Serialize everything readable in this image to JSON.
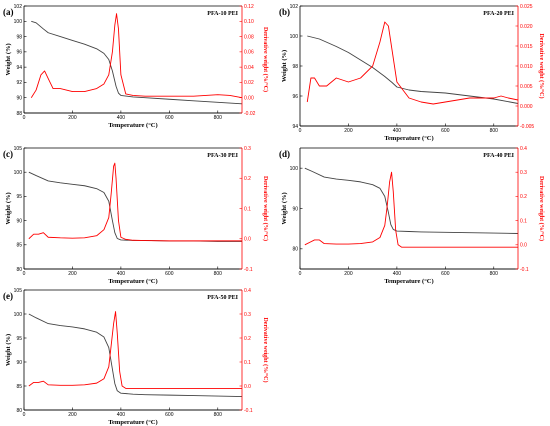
{
  "chart_data": [
    {
      "type": "line",
      "panel": "(a)",
      "title": "PFA-10 PEI",
      "xlabel": "Temperature (°C)",
      "ylabel": "Weight (%)",
      "y2label": "Derivative weight (%/°C)",
      "xlim": [
        0,
        900
      ],
      "ylim": [
        88,
        102
      ],
      "y2lim": [
        -0.02,
        0.12
      ],
      "x_ticks": [
        0,
        200,
        400,
        600,
        800
      ],
      "y_ticks": [
        88,
        90,
        92,
        94,
        96,
        98,
        100,
        102
      ],
      "y2_ticks": [
        -0.02,
        0,
        0.02,
        0.04,
        0.06,
        0.08,
        0.1,
        0.12
      ],
      "x_tick_labels": [
        "0",
        "200",
        "400",
        "600",
        "800"
      ],
      "y_tick_labels": [
        "88",
        "90",
        "92",
        "94",
        "96",
        "98",
        "100",
        "102"
      ],
      "y2_tick_labels": [
        "-0.02",
        "0.00",
        "0.02",
        "0.04",
        "0.06",
        "0.08",
        "0.10",
        "0.12"
      ],
      "grid": false,
      "series": [
        {
          "axis": "left",
          "color": "#444444",
          "x": [
            30,
            50,
            80,
            100,
            150,
            200,
            250,
            300,
            330,
            350,
            365,
            380,
            390,
            400,
            450,
            500,
            600,
            700,
            800,
            900
          ],
          "y": [
            100.0,
            99.8,
            99.0,
            98.5,
            98.0,
            97.5,
            97.0,
            96.4,
            95.8,
            95.0,
            93.5,
            91.5,
            90.6,
            90.3,
            90.1,
            90.0,
            89.8,
            89.6,
            89.4,
            89.2
          ]
        },
        {
          "axis": "right",
          "color": "#ff0000",
          "x": [
            30,
            50,
            70,
            85,
            100,
            120,
            150,
            200,
            250,
            300,
            330,
            350,
            365,
            375,
            382,
            390,
            400,
            420,
            450,
            500,
            600,
            700,
            800,
            850,
            900
          ],
          "y": [
            0.0,
            0.01,
            0.03,
            0.035,
            0.025,
            0.012,
            0.012,
            0.008,
            0.008,
            0.012,
            0.018,
            0.03,
            0.06,
            0.095,
            0.11,
            0.09,
            0.03,
            0.005,
            0.003,
            0.002,
            0.002,
            0.002,
            0.004,
            0.003,
            0.0
          ]
        }
      ]
    },
    {
      "type": "line",
      "panel": "(b)",
      "title": "PFA-20 PEI",
      "xlabel": "Temperature (°C)",
      "ylabel": "Weight (%)",
      "y2label": "Derivative weight (%/°C)",
      "xlim": [
        0,
        900
      ],
      "ylim": [
        94,
        102
      ],
      "y2lim": [
        -0.005,
        0.025
      ],
      "x_ticks": [
        0,
        200,
        400,
        600,
        800
      ],
      "y_ticks": [
        94,
        96,
        98,
        100,
        102
      ],
      "y2_ticks": [
        -0.005,
        0,
        0.005,
        0.01,
        0.015,
        0.02,
        0.025
      ],
      "x_tick_labels": [
        "0",
        "200",
        "400",
        "600",
        "800"
      ],
      "y_tick_labels": [
        "94",
        "96",
        "98",
        "100",
        "102"
      ],
      "y2_tick_labels": [
        "-0.005",
        "0.000",
        "0.005",
        "0.010",
        "0.015",
        "0.020",
        "0.025"
      ],
      "grid": false,
      "series": [
        {
          "axis": "left",
          "color": "#444444",
          "x": [
            30,
            80,
            150,
            200,
            250,
            300,
            350,
            380,
            400,
            450,
            500,
            600,
            700,
            800,
            900
          ],
          "y": [
            100.0,
            99.8,
            99.3,
            98.9,
            98.4,
            97.9,
            97.3,
            96.9,
            96.6,
            96.4,
            96.3,
            96.2,
            96.0,
            95.8,
            95.5
          ]
        },
        {
          "axis": "right",
          "color": "#ff0000",
          "x": [
            30,
            45,
            60,
            80,
            110,
            150,
            200,
            250,
            300,
            330,
            350,
            365,
            380,
            400,
            450,
            500,
            550,
            600,
            700,
            800,
            830,
            860,
            900
          ],
          "y": [
            0.001,
            0.007,
            0.007,
            0.005,
            0.005,
            0.007,
            0.006,
            0.007,
            0.01,
            0.016,
            0.021,
            0.02,
            0.014,
            0.006,
            0.002,
            0.001,
            0.0005,
            0.001,
            0.002,
            0.002,
            0.0025,
            0.002,
            0.0015
          ]
        }
      ]
    },
    {
      "type": "line",
      "panel": "(c)",
      "title": "PFA-30 PEI",
      "xlabel": "Temperature (°C)",
      "ylabel": "Weight (%)",
      "y2label": "Derivative weight (%/°C)",
      "xlim": [
        0,
        900
      ],
      "ylim": [
        80,
        105
      ],
      "y2lim": [
        -0.1,
        0.3
      ],
      "x_ticks": [
        0,
        200,
        400,
        600,
        800
      ],
      "y_ticks": [
        80,
        85,
        90,
        95,
        100,
        105
      ],
      "y2_ticks": [
        -0.1,
        0,
        0.1,
        0.2,
        0.3
      ],
      "x_tick_labels": [
        "0",
        "200",
        "400",
        "600",
        "800"
      ],
      "y_tick_labels": [
        "80",
        "85",
        "90",
        "95",
        "100",
        "105"
      ],
      "y2_tick_labels": [
        "-0.1",
        "0.0",
        "0.1",
        "0.2",
        "0.3"
      ],
      "grid": false,
      "series": [
        {
          "axis": "left",
          "color": "#444444",
          "x": [
            20,
            50,
            100,
            150,
            200,
            250,
            300,
            330,
            350,
            365,
            375,
            385,
            400,
            450,
            500,
            600,
            700,
            800,
            900
          ],
          "y": [
            100.0,
            99.3,
            98.2,
            97.8,
            97.5,
            97.2,
            96.6,
            95.8,
            94.0,
            90.0,
            87.5,
            86.3,
            86.0,
            85.9,
            85.9,
            85.8,
            85.8,
            85.7,
            85.7
          ]
        },
        {
          "axis": "right",
          "color": "#ff0000",
          "x": [
            20,
            40,
            60,
            80,
            100,
            150,
            200,
            250,
            300,
            330,
            350,
            360,
            370,
            375,
            380,
            390,
            400,
            420,
            450,
            500,
            600,
            700,
            800,
            900
          ],
          "y": [
            0.0,
            0.015,
            0.015,
            0.02,
            0.005,
            0.003,
            0.002,
            0.003,
            0.01,
            0.03,
            0.07,
            0.15,
            0.24,
            0.25,
            0.2,
            0.06,
            0.005,
            -0.002,
            -0.005,
            -0.006,
            -0.007,
            -0.007,
            -0.007,
            -0.007
          ]
        }
      ]
    },
    {
      "type": "line",
      "panel": "(d)",
      "title": "PFA-40 PEI",
      "xlabel": "Temperature (°C)",
      "ylabel": "Weight (%)",
      "y2label": "Derivative weight (%/°C)",
      "xlim": [
        0,
        900
      ],
      "ylim": [
        75,
        105
      ],
      "y2lim": [
        -0.1,
        0.4
      ],
      "x_ticks": [
        0,
        200,
        400,
        600,
        800
      ],
      "y_ticks": [
        80,
        90,
        100
      ],
      "y2_ticks": [
        -0.1,
        0,
        0.1,
        0.2,
        0.3,
        0.4
      ],
      "x_tick_labels": [
        "0",
        "200",
        "400",
        "600",
        "800"
      ],
      "y_tick_labels": [
        "80",
        "90",
        "100"
      ],
      "y2_tick_labels": [
        "-0.1",
        "0.0",
        "0.1",
        "0.2",
        "0.3",
        "0.4"
      ],
      "grid": false,
      "series": [
        {
          "axis": "left",
          "color": "#444444",
          "x": [
            20,
            50,
            100,
            150,
            200,
            250,
            300,
            330,
            350,
            365,
            375,
            385,
            400,
            450,
            500,
            600,
            700,
            800,
            900
          ],
          "y": [
            100.0,
            99.2,
            97.8,
            97.3,
            97.0,
            96.6,
            95.9,
            95.0,
            93.0,
            89.0,
            86.0,
            84.8,
            84.4,
            84.3,
            84.2,
            84.1,
            84.0,
            83.9,
            83.8
          ]
        },
        {
          "axis": "right",
          "color": "#ff0000",
          "x": [
            20,
            40,
            60,
            80,
            100,
            150,
            200,
            250,
            300,
            330,
            350,
            360,
            370,
            378,
            385,
            395,
            405,
            420,
            450,
            500,
            600,
            700,
            800,
            900
          ],
          "y": [
            0.0,
            0.01,
            0.02,
            0.02,
            0.005,
            0.003,
            0.003,
            0.005,
            0.012,
            0.03,
            0.08,
            0.16,
            0.26,
            0.3,
            0.22,
            0.06,
            0.0,
            -0.01,
            -0.01,
            -0.01,
            -0.01,
            -0.01,
            -0.01,
            -0.01
          ]
        }
      ]
    },
    {
      "type": "line",
      "panel": "(e)",
      "title": "PFA-50 PEI",
      "xlabel": "Temperature (°C)",
      "ylabel": "Weight (%)",
      "y2label": "Derivative weight (%/°C)",
      "xlim": [
        0,
        900
      ],
      "ylim": [
        80,
        105
      ],
      "y2lim": [
        -0.1,
        0.4
      ],
      "x_ticks": [
        0,
        200,
        400,
        600,
        800
      ],
      "y_ticks": [
        80,
        85,
        90,
        95,
        100,
        105
      ],
      "y2_ticks": [
        -0.1,
        0,
        0.1,
        0.2,
        0.3,
        0.4
      ],
      "x_tick_labels": [
        "0",
        "200",
        "400",
        "600",
        "800"
      ],
      "y_tick_labels": [
        "80",
        "85",
        "90",
        "95",
        "100",
        "105"
      ],
      "y2_tick_labels": [
        "-0.1",
        "0.0",
        "0.1",
        "0.2",
        "0.3",
        "0.4"
      ],
      "grid": false,
      "series": [
        {
          "axis": "left",
          "color": "#444444",
          "x": [
            20,
            50,
            100,
            150,
            200,
            250,
            300,
            330,
            350,
            365,
            375,
            385,
            400,
            450,
            500,
            600,
            700,
            800,
            900
          ],
          "y": [
            100.0,
            99.2,
            98.0,
            97.6,
            97.3,
            96.9,
            96.2,
            95.2,
            93.0,
            88.5,
            85.5,
            84.0,
            83.5,
            83.3,
            83.2,
            83.1,
            83.0,
            82.9,
            82.8
          ]
        },
        {
          "axis": "right",
          "color": "#ff0000",
          "x": [
            20,
            40,
            60,
            80,
            100,
            150,
            200,
            250,
            300,
            330,
            350,
            360,
            370,
            378,
            385,
            395,
            405,
            420,
            450,
            500,
            600,
            700,
            800,
            900
          ],
          "y": [
            0.0,
            0.015,
            0.015,
            0.02,
            0.005,
            0.003,
            0.003,
            0.005,
            0.012,
            0.03,
            0.08,
            0.17,
            0.26,
            0.31,
            0.22,
            0.06,
            0.0,
            -0.01,
            -0.01,
            -0.01,
            -0.01,
            -0.01,
            -0.01,
            -0.01
          ]
        }
      ]
    }
  ]
}
